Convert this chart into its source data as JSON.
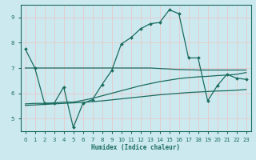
{
  "background_color": "#cce9f0",
  "grid_color": "#e8c8c8",
  "line_color": "#1a6b5e",
  "xlabel": "Humidex (Indice chaleur)",
  "xlim": [
    -0.5,
    23.5
  ],
  "ylim": [
    4.5,
    9.5
  ],
  "xticks": [
    0,
    1,
    2,
    3,
    4,
    5,
    6,
    7,
    8,
    9,
    10,
    11,
    12,
    13,
    14,
    15,
    16,
    17,
    18,
    19,
    20,
    21,
    22,
    23
  ],
  "yticks": [
    5,
    6,
    7,
    8,
    9
  ],
  "curve_x": [
    0,
    1,
    2,
    3,
    4,
    5,
    6,
    7,
    8,
    9,
    10,
    11,
    12,
    13,
    14,
    15,
    16,
    17,
    18,
    19,
    20,
    21,
    22,
    23
  ],
  "curve_y": [
    7.75,
    7.0,
    5.6,
    5.6,
    6.25,
    4.65,
    5.6,
    5.75,
    6.35,
    6.9,
    7.95,
    8.2,
    8.55,
    8.75,
    8.8,
    9.3,
    9.15,
    7.4,
    7.4,
    5.7,
    6.3,
    6.75,
    6.6,
    6.55
  ],
  "flat_line_x": [
    0,
    1,
    2,
    3,
    4,
    5,
    6,
    7,
    8,
    9,
    10,
    11,
    12,
    13,
    14,
    15,
    16,
    17,
    18,
    19,
    20,
    21,
    22,
    23
  ],
  "flat_line_y": [
    7.0,
    7.0,
    7.0,
    7.0,
    7.0,
    7.0,
    7.0,
    7.0,
    7.0,
    7.0,
    7.0,
    7.0,
    7.0,
    7.0,
    6.98,
    6.96,
    6.94,
    6.93,
    6.92,
    6.92,
    6.92,
    6.92,
    6.92,
    6.92
  ],
  "rise_line1_x": [
    0,
    1,
    2,
    3,
    4,
    5,
    6,
    7,
    8,
    9,
    10,
    11,
    12,
    13,
    14,
    15,
    16,
    17,
    18,
    19,
    20,
    21,
    22,
    23
  ],
  "rise_line1_y": [
    5.58,
    5.6,
    5.6,
    5.62,
    5.65,
    5.65,
    5.72,
    5.8,
    5.9,
    6.0,
    6.1,
    6.2,
    6.3,
    6.38,
    6.46,
    6.52,
    6.58,
    6.62,
    6.65,
    6.67,
    6.7,
    6.72,
    6.75,
    6.82
  ],
  "rise_line2_x": [
    0,
    1,
    2,
    3,
    4,
    5,
    6,
    7,
    8,
    9,
    10,
    11,
    12,
    13,
    14,
    15,
    16,
    17,
    18,
    19,
    20,
    21,
    22,
    23
  ],
  "rise_line2_y": [
    5.52,
    5.54,
    5.56,
    5.58,
    5.6,
    5.62,
    5.64,
    5.67,
    5.7,
    5.74,
    5.78,
    5.82,
    5.86,
    5.9,
    5.94,
    5.97,
    6.0,
    6.03,
    6.05,
    6.07,
    6.09,
    6.1,
    6.12,
    6.15
  ]
}
